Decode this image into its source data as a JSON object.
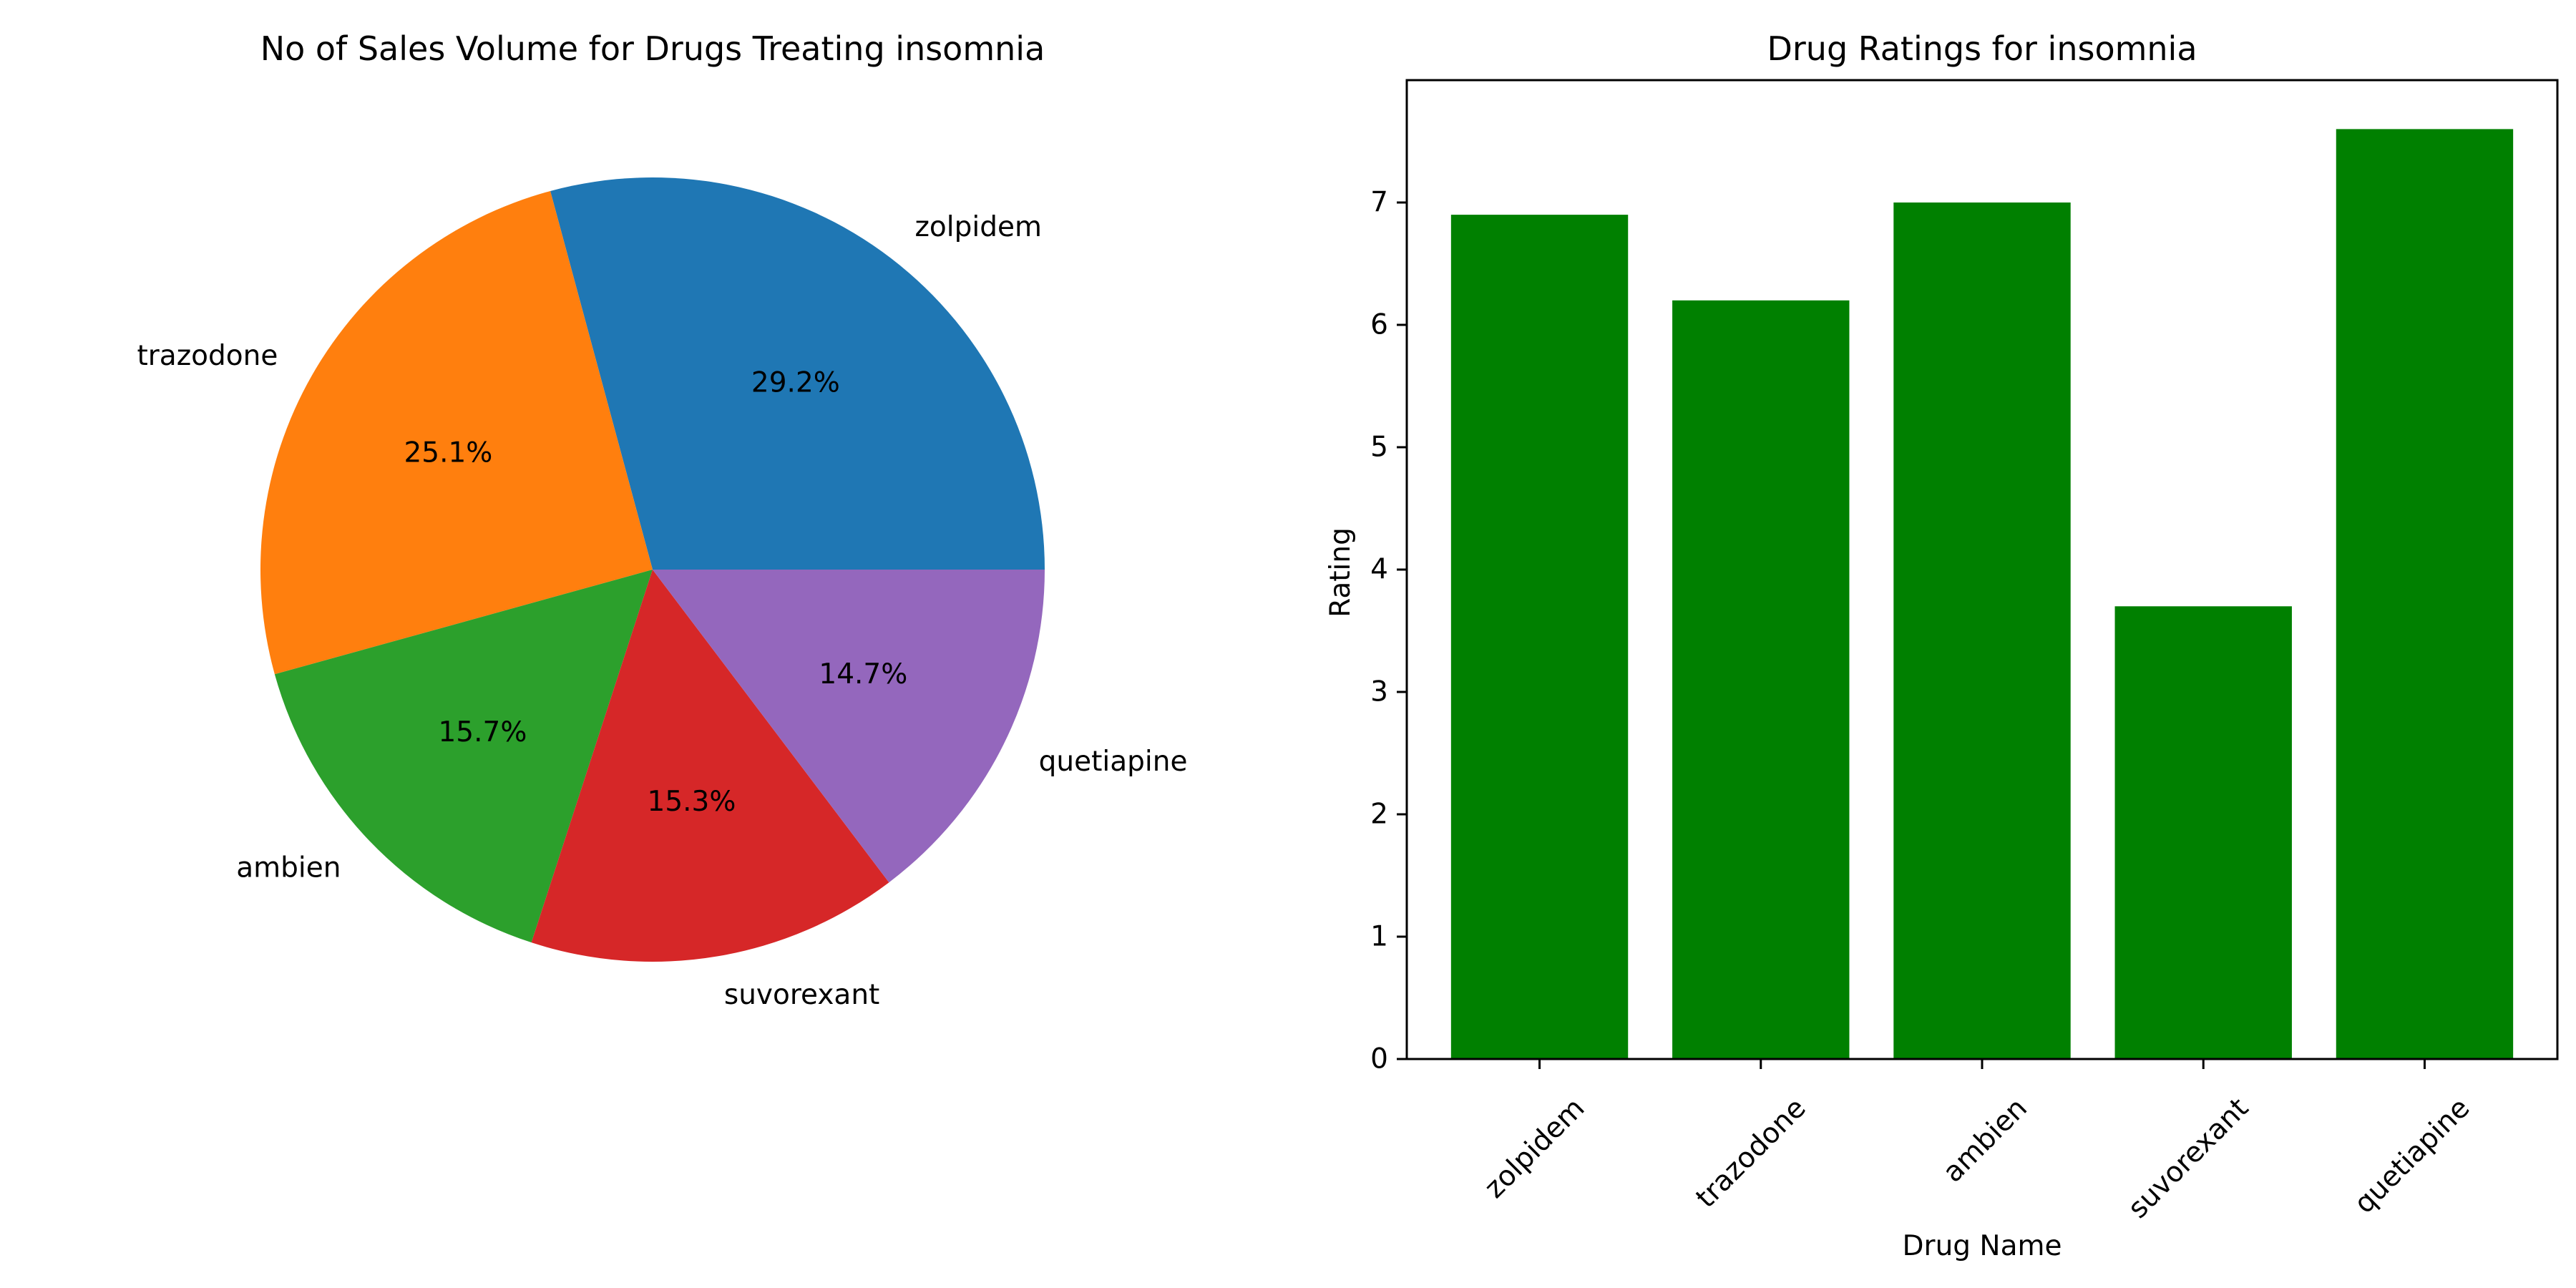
{
  "chart_data": [
    {
      "type": "pie",
      "title": "No of Sales Volume for Drugs Treating insomnia",
      "labels": [
        "zolpidem",
        "trazodone",
        "ambien",
        "suvorexant",
        "quetiapine"
      ],
      "values": [
        29.2,
        25.1,
        15.7,
        15.3,
        14.7
      ],
      "value_labels": [
        "29.2%",
        "25.1%",
        "15.7%",
        "15.3%",
        "14.7%"
      ],
      "colors": [
        "#1f77b4",
        "#ff7f0e",
        "#2ca02c",
        "#d62728",
        "#9467bd"
      ],
      "legend": "none"
    },
    {
      "type": "bar",
      "title": "Drug Ratings for insomnia",
      "categories": [
        "zolpidem",
        "trazodone",
        "ambien",
        "suvorexant",
        "quetiapine"
      ],
      "values": [
        6.9,
        6.2,
        7.0,
        3.7,
        7.6
      ],
      "xlabel": "Drug Name",
      "ylabel": "Rating",
      "ylim": [
        0,
        8
      ],
      "yticks": [
        0,
        1,
        2,
        3,
        4,
        5,
        6,
        7
      ],
      "bar_color": "#008000",
      "grid": false,
      "legend": "none"
    }
  ]
}
